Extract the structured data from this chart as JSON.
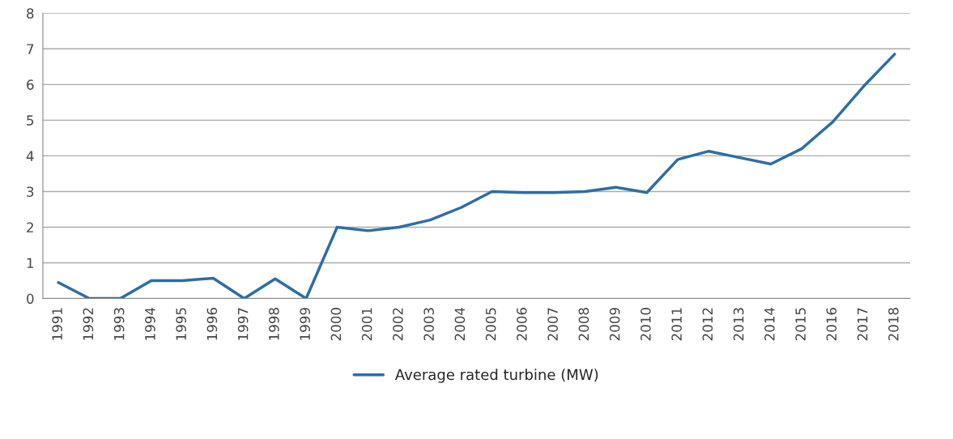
{
  "chart_data": {
    "type": "line",
    "categories": [
      "1991",
      "1992",
      "1993",
      "1994",
      "1995",
      "1996",
      "1997",
      "1998",
      "1999",
      "2000",
      "2001",
      "2002",
      "2003",
      "2004",
      "2005",
      "2006",
      "2007",
      "2008",
      "2009",
      "2010",
      "2011",
      "2012",
      "2013",
      "2014",
      "2015",
      "2016",
      "2017",
      "2018"
    ],
    "series": [
      {
        "name": "Average rated turbine (MW)",
        "color": "#2e6da4",
        "values": [
          0.45,
          0,
          0,
          0.5,
          0.5,
          0.57,
          0,
          0.55,
          0,
          2.0,
          1.9,
          2.0,
          2.2,
          2.55,
          3.0,
          2.97,
          2.97,
          3.0,
          3.12,
          2.97,
          3.9,
          4.13,
          3.95,
          3.77,
          4.2,
          4.95,
          5.95,
          6.85
        ]
      }
    ],
    "ylim": [
      0,
      8
    ],
    "yticks": [
      0,
      1,
      2,
      3,
      4,
      5,
      6,
      7,
      8
    ],
    "grid": "y",
    "legend": "bottom",
    "marker": "none",
    "line_style": "solid"
  }
}
